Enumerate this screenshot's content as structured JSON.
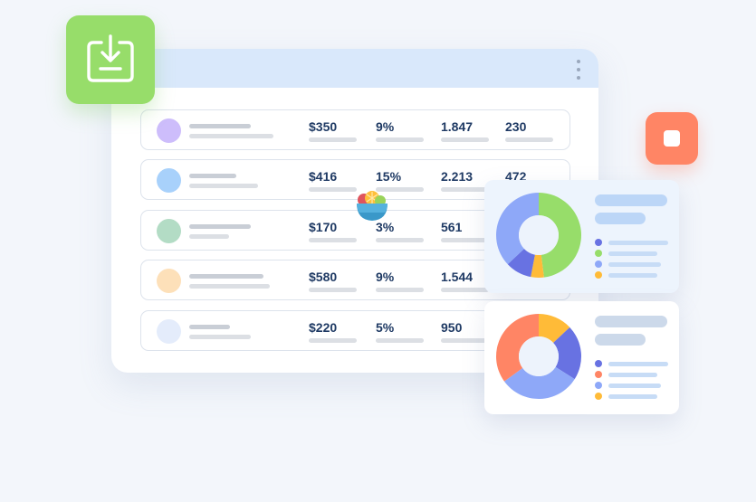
{
  "colors": {
    "background": "#f3f6fb",
    "window_header": "#d9e8fb",
    "value_text": "#1f3a64",
    "download_badge": "#97dd6a",
    "stop_badge": "#ff8565",
    "chart_green": "#97dd6a",
    "chart_blue": "#8ea8f8",
    "chart_indigo": "#6872e2",
    "chart_orange": "#ffbb38",
    "chart_coral": "#ff8565"
  },
  "icons": {
    "download": "download-tray-icon",
    "menu": "kebab-menu-icon",
    "stop": "stop-square-icon",
    "fruit": "fruit-bowl-icon"
  },
  "table": {
    "rows": [
      {
        "avatar_color": "#cdbdfb",
        "price": "$350",
        "percent": "9%",
        "count": "1.847",
        "number": "230"
      },
      {
        "avatar_color": "#a8d1fb",
        "price": "$416",
        "percent": "15%",
        "count": "2.213",
        "number": "472"
      },
      {
        "avatar_color": "#b3dcc5",
        "price": "$170",
        "percent": "3%",
        "count": "561",
        "number": ""
      },
      {
        "avatar_color": "#fde0b9",
        "price": "$580",
        "percent": "9%",
        "count": "1.544",
        "number": ""
      },
      {
        "avatar_color": "#e4ecfb",
        "price": "$220",
        "percent": "5%",
        "count": "950",
        "number": ""
      }
    ]
  },
  "charts": [
    {
      "segments": [
        {
          "color": "#97dd6a",
          "fraction": 0.48
        },
        {
          "color": "#ffbb38",
          "fraction": 0.05
        },
        {
          "color": "#6872e2",
          "fraction": 0.1
        },
        {
          "color": "#8ea8f8",
          "fraction": 0.37
        }
      ],
      "legend_colors": [
        "#6872e2",
        "#97dd6a",
        "#8ea8f8",
        "#ffbb38"
      ]
    },
    {
      "segments": [
        {
          "color": "#ffbb38",
          "fraction": 0.13
        },
        {
          "color": "#6872e2",
          "fraction": 0.21
        },
        {
          "color": "#8ea8f8",
          "fraction": 0.31
        },
        {
          "color": "#ff8565",
          "fraction": 0.35
        }
      ],
      "legend_colors": [
        "#6872e2",
        "#ff8565",
        "#8ea8f8",
        "#ffbb38"
      ]
    }
  ]
}
